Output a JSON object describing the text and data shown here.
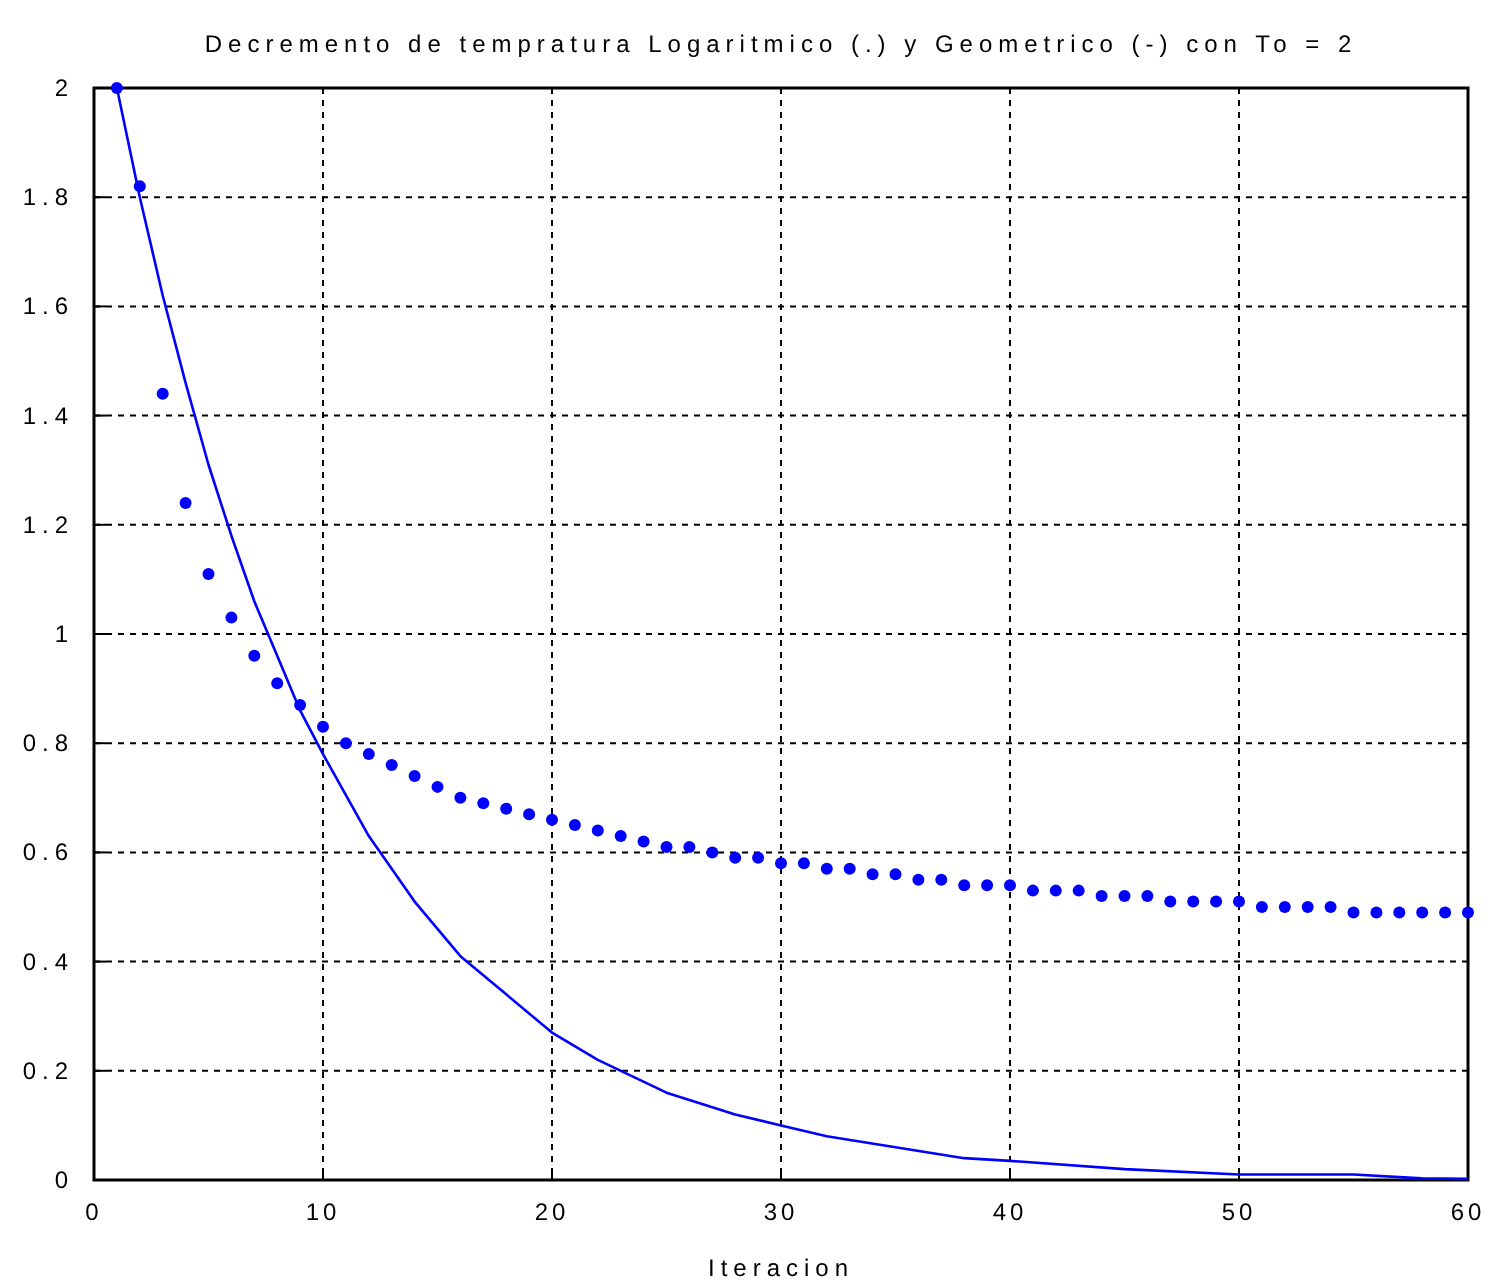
{
  "chart_data": {
    "type": "line",
    "title": "Decremento de tempratura Logaritmico (.) y Geometrico (-) con To = 2",
    "xlabel": "Iteracion",
    "xlim": [
      0,
      60
    ],
    "xticks": [
      0,
      10,
      20,
      30,
      40,
      50,
      60
    ],
    "ylim": [
      0,
      2
    ],
    "yticks": [
      0,
      0.2,
      0.4,
      0.6,
      0.8,
      1,
      1.2,
      1.4,
      1.6,
      1.8,
      2
    ],
    "grid": true,
    "series": [
      {
        "type": "scatter",
        "marker": "circle",
        "color": "#0000ff",
        "x": [
          1,
          2,
          3,
          4,
          5,
          6,
          7,
          8,
          9,
          10,
          11,
          12,
          13,
          14,
          15,
          16,
          17,
          18,
          19,
          20,
          21,
          22,
          23,
          24,
          25,
          26,
          27,
          28,
          29,
          30,
          31,
          32,
          33,
          34,
          35,
          36,
          37,
          38,
          39,
          40,
          41,
          42,
          43,
          44,
          45,
          46,
          47,
          48,
          49,
          50,
          51,
          52,
          53,
          54,
          55,
          56,
          57,
          58,
          59,
          60
        ],
        "values": [
          2.0,
          1.82,
          1.44,
          1.24,
          1.11,
          1.03,
          0.96,
          0.91,
          0.87,
          0.83,
          0.8,
          0.78,
          0.76,
          0.74,
          0.72,
          0.7,
          0.69,
          0.68,
          0.67,
          0.66,
          0.65,
          0.64,
          0.63,
          0.62,
          0.61,
          0.61,
          0.6,
          0.59,
          0.59,
          0.58,
          0.58,
          0.57,
          0.57,
          0.56,
          0.56,
          0.55,
          0.55,
          0.54,
          0.54,
          0.54,
          0.53,
          0.53,
          0.53,
          0.52,
          0.52,
          0.52,
          0.51,
          0.51,
          0.51,
          0.51,
          0.5,
          0.5,
          0.5,
          0.5,
          0.49,
          0.49,
          0.49,
          0.49,
          0.49,
          0.49
        ]
      },
      {
        "marker": "none",
        "line_style": "solid",
        "color": "#0000ff",
        "x": [
          1,
          2,
          3,
          4,
          5,
          6,
          7,
          8,
          9,
          10,
          12,
          14,
          16,
          18,
          20,
          22,
          25,
          28,
          30,
          32,
          35,
          38,
          40,
          45,
          50,
          55,
          58,
          60
        ],
        "values": [
          2.0,
          1.8,
          1.62,
          1.46,
          1.31,
          1.18,
          1.06,
          0.96,
          0.86,
          0.78,
          0.63,
          0.51,
          0.41,
          0.34,
          0.27,
          0.22,
          0.16,
          0.12,
          0.1,
          0.08,
          0.06,
          0.04,
          0.035,
          0.02,
          0.01,
          0.01,
          0.003,
          0.002
        ]
      }
    ]
  }
}
